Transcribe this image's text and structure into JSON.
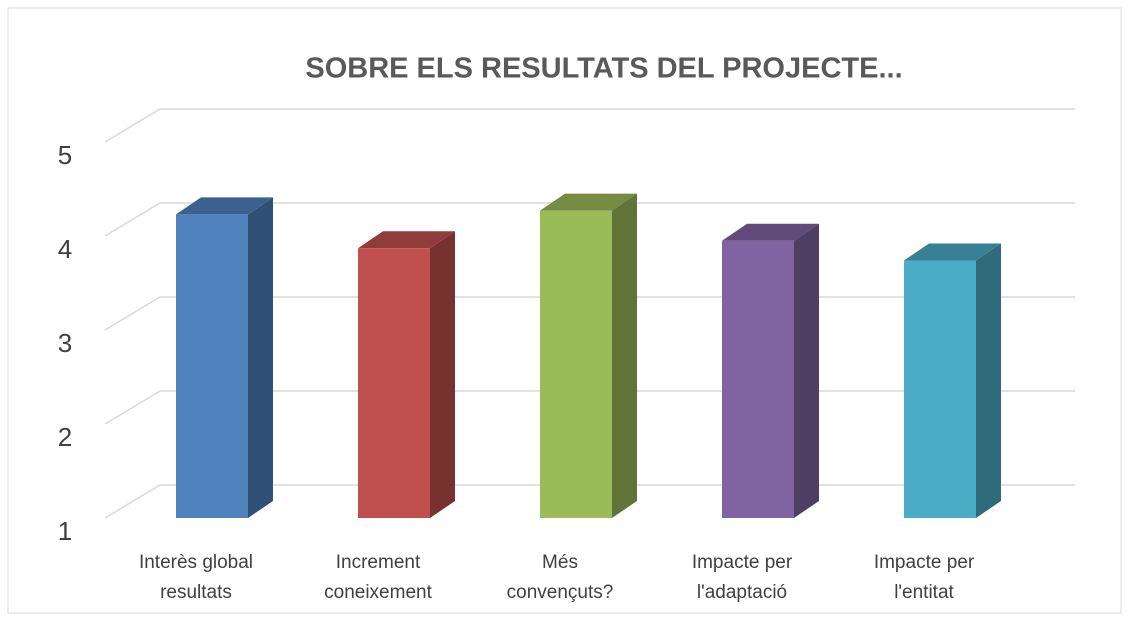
{
  "chart_data": {
    "type": "bar3d",
    "title": "SOBRE ELS RESULTATS DEL PROJECTE...",
    "categories": [
      [
        "Interès global",
        "resultats"
      ],
      [
        "Increment",
        "coneixement"
      ],
      [
        "Més",
        "convençuts?"
      ],
      [
        "Impacte per",
        "l'adaptació"
      ],
      [
        "Impacte per",
        "l'entitat"
      ]
    ],
    "values": [
      4.23,
      3.87,
      4.27,
      3.95,
      3.74
    ],
    "colors": [
      "#4f81bd",
      "#c0504d",
      "#9bbb59",
      "#8064a2",
      "#4bacc6"
    ],
    "ylim": [
      1,
      5
    ],
    "yticks": [
      1,
      2,
      3,
      4,
      5
    ],
    "grid": true
  }
}
